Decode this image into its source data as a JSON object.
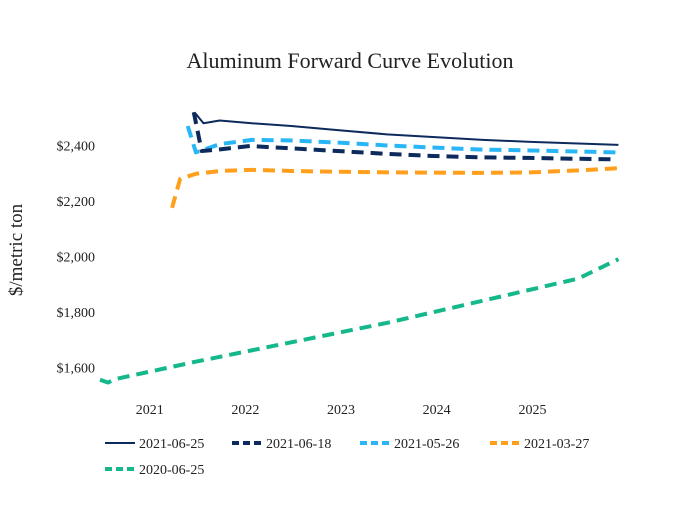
{
  "chart_data": {
    "type": "line",
    "title": "Aluminum Forward Curve Evolution",
    "xlabel": "",
    "ylabel": "$/metric ton",
    "xlim": [
      "2020-06-25",
      "2025-12-01"
    ],
    "ylim": [
      1500,
      2600
    ],
    "grid": false,
    "legend_position": "bottom",
    "x_ticks": [
      "2021",
      "2022",
      "2023",
      "2024",
      "2025"
    ],
    "y_ticks": [
      1600,
      1800,
      2000,
      2200,
      2400
    ],
    "y_tick_labels": [
      "$1,600",
      "$1,800",
      "$2,000",
      "$2,200",
      "$2,400"
    ],
    "series": [
      {
        "name": "2021-06-25",
        "color": "#0d2a5c",
        "dash": "solid",
        "points": [
          [
            "2021-06-25",
            2515
          ],
          [
            "2021-07-25",
            2480
          ],
          [
            "2021-09-25",
            2490
          ],
          [
            "2022-01-25",
            2480
          ],
          [
            "2022-06-25",
            2470
          ],
          [
            "2022-12-25",
            2455
          ],
          [
            "2023-06-25",
            2440
          ],
          [
            "2023-12-25",
            2430
          ],
          [
            "2024-06-25",
            2420
          ],
          [
            "2024-12-25",
            2413
          ],
          [
            "2025-06-25",
            2407
          ],
          [
            "2025-11-25",
            2402
          ]
        ]
      },
      {
        "name": "2021-06-18",
        "color": "#0d2a5c",
        "dash": "dash",
        "points": [
          [
            "2021-06-18",
            2520
          ],
          [
            "2021-07-18",
            2380
          ],
          [
            "2021-09-18",
            2385
          ],
          [
            "2022-01-18",
            2398
          ],
          [
            "2022-06-18",
            2390
          ],
          [
            "2022-12-18",
            2380
          ],
          [
            "2023-06-18",
            2370
          ],
          [
            "2023-12-18",
            2362
          ],
          [
            "2024-06-18",
            2357
          ],
          [
            "2024-12-18",
            2355
          ],
          [
            "2025-06-18",
            2352
          ],
          [
            "2025-11-18",
            2350
          ]
        ]
      },
      {
        "name": "2021-05-26",
        "color": "#29b6f6",
        "dash": "dash",
        "points": [
          [
            "2021-05-26",
            2470
          ],
          [
            "2021-06-26",
            2375
          ],
          [
            "2021-09-26",
            2405
          ],
          [
            "2022-01-26",
            2420
          ],
          [
            "2022-06-26",
            2418
          ],
          [
            "2022-12-26",
            2410
          ],
          [
            "2023-06-26",
            2400
          ],
          [
            "2023-12-26",
            2392
          ],
          [
            "2024-06-26",
            2385
          ],
          [
            "2024-12-26",
            2382
          ],
          [
            "2025-06-26",
            2378
          ],
          [
            "2025-11-26",
            2375
          ]
        ]
      },
      {
        "name": "2021-03-27",
        "color": "#ff9f1c",
        "dash": "dash",
        "points": [
          [
            "2021-03-27",
            2175
          ],
          [
            "2021-04-27",
            2280
          ],
          [
            "2021-06-27",
            2298
          ],
          [
            "2021-09-27",
            2308
          ],
          [
            "2022-01-27",
            2312
          ],
          [
            "2022-06-27",
            2308
          ],
          [
            "2022-12-27",
            2305
          ],
          [
            "2023-06-27",
            2303
          ],
          [
            "2023-12-27",
            2302
          ],
          [
            "2024-06-27",
            2301
          ],
          [
            "2024-12-27",
            2303
          ],
          [
            "2025-06-27",
            2310
          ],
          [
            "2025-11-27",
            2318
          ]
        ]
      },
      {
        "name": "2020-06-25",
        "color": "#14b88a",
        "dash": "dash",
        "points": [
          [
            "2020-06-25",
            1555
          ],
          [
            "2020-07-25",
            1545
          ],
          [
            "2020-08-25",
            1558
          ],
          [
            "2021-06-25",
            1620
          ],
          [
            "2022-06-25",
            1690
          ],
          [
            "2023-06-25",
            1760
          ],
          [
            "2024-06-25",
            1840
          ],
          [
            "2025-06-25",
            1920
          ],
          [
            "2025-11-25",
            1990
          ]
        ]
      }
    ]
  }
}
